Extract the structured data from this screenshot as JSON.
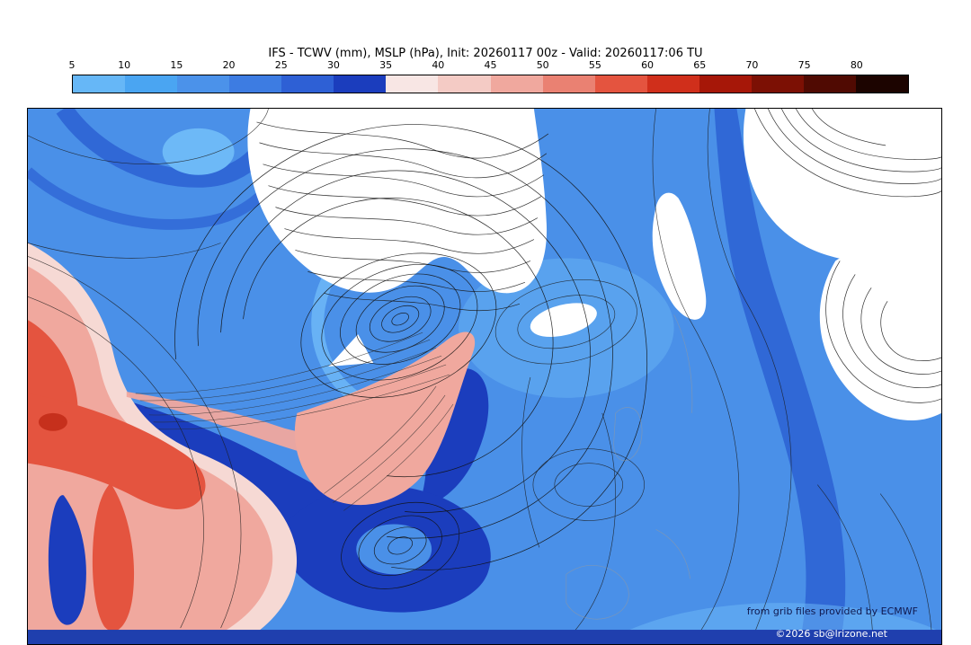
{
  "header": {
    "title": "IFS - TCWV (mm), MSLP (hPa), Init: 20260117 00z - Valid: 20260117:06 TU"
  },
  "colorbar": {
    "ticks": [
      "5",
      "10",
      "15",
      "20",
      "25",
      "30",
      "35",
      "40",
      "45",
      "50",
      "55",
      "60",
      "65",
      "70",
      "75",
      "80"
    ],
    "segments": [
      {
        "range": "5-10",
        "color": "#66b7f7"
      },
      {
        "range": "10-15",
        "color": "#4aa5f2"
      },
      {
        "range": "15-20",
        "color": "#4b92ea"
      },
      {
        "range": "20-25",
        "color": "#3d7ce2"
      },
      {
        "range": "25-30",
        "color": "#2e60d5"
      },
      {
        "range": "30-35",
        "color": "#1b3dbd"
      },
      {
        "range": "35-40",
        "color": "#f8e6e4"
      },
      {
        "range": "40-45",
        "color": "#f4cbc5"
      },
      {
        "range": "45-50",
        "color": "#f0a89e"
      },
      {
        "range": "50-55",
        "color": "#ea8172"
      },
      {
        "range": "55-60",
        "color": "#e4543f"
      },
      {
        "range": "60-65",
        "color": "#d02f1b"
      },
      {
        "range": "65-70",
        "color": "#a61708"
      },
      {
        "range": "70-75",
        "color": "#7c1004"
      },
      {
        "range": "75-80",
        "color": "#500a02"
      },
      {
        "range": "80+",
        "color": "#1c0400"
      }
    ]
  },
  "map": {
    "attribution_line1": "from grib files provided by ECMWF",
    "attribution_line2": "©2026 sb@lrizone.net"
  },
  "palette": {
    "blue_light": "#6db9f7",
    "blue_mid": "#4a90e8",
    "blue_deep": "#3068d6",
    "blue_navy": "#1b3dbd",
    "pink_pale": "#f6d9d4",
    "salmon": "#f0a89e",
    "red": "#e4543f",
    "red_dark": "#c22c18",
    "strip": "#1f3fae"
  }
}
